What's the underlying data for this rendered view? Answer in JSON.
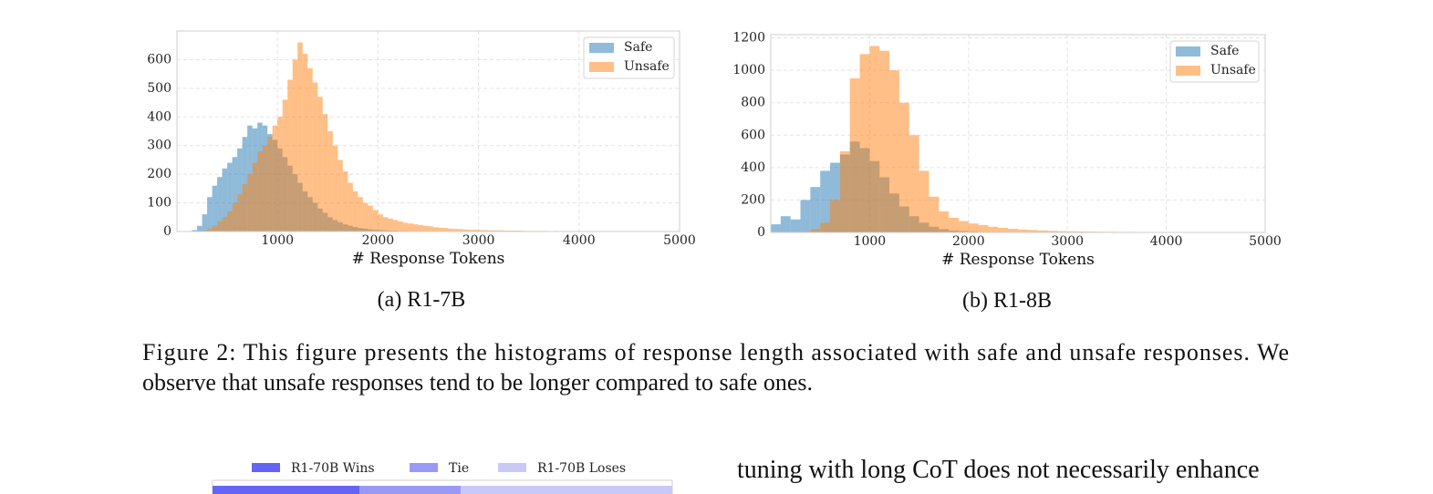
{
  "chart_data": [
    {
      "type": "histogram",
      "caption": "(a) R1-7B",
      "xlabel": "# Response Tokens",
      "xlim": [
        0,
        5000
      ],
      "ylim": [
        0,
        700
      ],
      "xticks": [
        1000,
        2000,
        3000,
        4000,
        5000
      ],
      "yticks": [
        0,
        100,
        200,
        300,
        400,
        500,
        600
      ],
      "grid": true,
      "legend": "upper right",
      "bins": [
        100,
        150,
        200,
        250,
        300,
        350,
        400,
        450,
        500,
        550,
        600,
        650,
        700,
        750,
        800,
        850,
        900,
        950,
        1000,
        1050,
        1100,
        1150,
        1200,
        1250,
        1300,
        1350,
        1400,
        1450,
        1500,
        1550,
        1600,
        1650,
        1700,
        1750,
        1800,
        1850,
        1900,
        1950,
        2000,
        2050,
        2100,
        2150,
        2200,
        2250,
        2300,
        2350,
        2400,
        2450,
        2500,
        2550,
        2600,
        2650,
        2700,
        2750,
        2800,
        2850,
        2900,
        2950,
        3000,
        3050,
        3100,
        3150,
        3200,
        3250,
        3300,
        3350,
        3400,
        3450,
        3500,
        3550,
        3600,
        3650,
        3700,
        3750,
        3800,
        3850,
        3900,
        3950,
        4000,
        4050,
        4100,
        4150,
        4200,
        4250,
        4300,
        4350,
        4400,
        4450,
        4500,
        4550,
        4600,
        4650,
        4700,
        4750,
        4800,
        4850,
        4900,
        4950,
        5000
      ],
      "series": [
        {
          "name": "Safe",
          "color": "#1f77b4",
          "values": [
            0,
            5,
            20,
            60,
            120,
            160,
            190,
            220,
            240,
            260,
            290,
            330,
            370,
            360,
            380,
            370,
            340,
            320,
            290,
            260,
            230,
            200,
            170,
            140,
            120,
            100,
            80,
            65,
            50,
            40,
            32,
            25,
            20,
            16,
            12,
            10,
            8,
            6,
            5,
            4,
            3,
            3,
            2,
            2,
            1,
            1,
            1,
            0,
            0,
            0,
            0,
            0,
            0,
            0,
            0,
            0,
            0,
            0,
            0,
            0,
            0,
            0,
            0,
            0,
            0,
            0,
            0,
            0,
            0,
            0,
            0,
            0,
            0,
            0,
            0,
            0,
            0,
            0,
            0,
            0,
            0,
            0,
            0,
            0,
            0,
            0,
            0,
            0,
            0,
            0,
            0,
            0,
            0,
            0,
            0,
            0,
            0,
            0
          ]
        },
        {
          "name": "Unsafe",
          "color": "#ff7f0e",
          "values": [
            0,
            0,
            2,
            5,
            10,
            20,
            35,
            50,
            70,
            100,
            130,
            165,
            200,
            240,
            280,
            300,
            330,
            370,
            400,
            460,
            530,
            600,
            660,
            620,
            570,
            520,
            470,
            410,
            350,
            300,
            250,
            210,
            170,
            140,
            120,
            100,
            90,
            75,
            60,
            50,
            45,
            40,
            35,
            30,
            28,
            25,
            22,
            20,
            18,
            15,
            13,
            12,
            10,
            9,
            8,
            7,
            6,
            6,
            5,
            5,
            4,
            4,
            4,
            3,
            3,
            3,
            3,
            2,
            2,
            2,
            2,
            2,
            1,
            2,
            1,
            1,
            1,
            1,
            1,
            0,
            1,
            0,
            1,
            0,
            0,
            1,
            0,
            0,
            0,
            0,
            0,
            1,
            0,
            0,
            0,
            0,
            0,
            0
          ]
        }
      ]
    },
    {
      "type": "histogram",
      "caption": "(b) R1-8B",
      "xlabel": "# Response Tokens",
      "xlim": [
        0,
        5000
      ],
      "ylim": [
        0,
        1220
      ],
      "xticks": [
        1000,
        2000,
        3000,
        4000,
        5000
      ],
      "yticks": [
        0,
        200,
        400,
        600,
        800,
        1000,
        1200
      ],
      "grid": true,
      "legend": "upper right",
      "bins": [
        0,
        100,
        200,
        300,
        400,
        500,
        600,
        700,
        800,
        900,
        1000,
        1100,
        1200,
        1300,
        1400,
        1500,
        1600,
        1700,
        1800,
        1900,
        2000,
        2100,
        2200,
        2300,
        2400,
        2500,
        2600,
        2700,
        2800,
        2900,
        3000,
        3100,
        3200,
        3300,
        3400,
        3500,
        3600,
        3700,
        3800,
        3900,
        4000,
        4100,
        4200,
        4300,
        4400,
        4500,
        4600,
        4700,
        4800,
        4900,
        5000
      ],
      "series": [
        {
          "name": "Safe",
          "color": "#1f77b4",
          "values": [
            50,
            100,
            80,
            200,
            280,
            380,
            430,
            480,
            560,
            520,
            440,
            340,
            240,
            160,
            100,
            60,
            35,
            20,
            12,
            8,
            5,
            3,
            2,
            1,
            0,
            0,
            0,
            0,
            0,
            0,
            0,
            0,
            0,
            0,
            0,
            0,
            0,
            0,
            0,
            0,
            0,
            0,
            0,
            0,
            0,
            0,
            0,
            0,
            0,
            0
          ]
        },
        {
          "name": "Unsafe",
          "color": "#ff7f0e",
          "values": [
            0,
            0,
            0,
            5,
            20,
            60,
            200,
            500,
            950,
            1100,
            1150,
            1120,
            1000,
            800,
            600,
            380,
            220,
            130,
            90,
            70,
            55,
            45,
            35,
            28,
            22,
            18,
            15,
            12,
            10,
            8,
            7,
            6,
            5,
            4,
            4,
            3,
            3,
            2,
            2,
            2,
            1,
            1,
            1,
            1,
            1,
            1,
            1,
            0,
            0,
            0
          ]
        }
      ]
    },
    {
      "type": "stacked_bar",
      "orientation": "horizontal",
      "xlim": [
        0,
        100
      ],
      "categories": [
        null
      ],
      "series": [
        {
          "name": "R1-70B Wins",
          "color": "#6464f5",
          "values": [
            32
          ]
        },
        {
          "name": "Tie",
          "color": "#9a9af6",
          "values": [
            22
          ]
        },
        {
          "name": "R1-70B Loses",
          "color": "#c9c9f8",
          "values": [
            46
          ]
        }
      ]
    }
  ],
  "figure_caption": [
    "Figure 2: This figure presents the histograms of response length associated with safe and unsafe responses. We",
    "observe that unsafe responses tend to be longer compared to safe ones."
  ],
  "body_text": "tuning with long CoT does not necessarily enhance"
}
